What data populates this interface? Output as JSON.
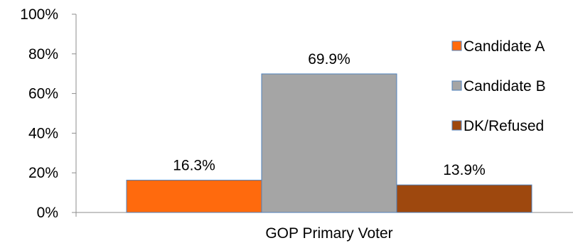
{
  "chart_data": {
    "type": "bar",
    "categories": [
      "GOP Primary Voter"
    ],
    "series": [
      {
        "name": "Candidate A",
        "values": [
          16.3
        ],
        "label": "16.3%",
        "color": "#FF6A0D"
      },
      {
        "name": "Candidate B",
        "values": [
          69.9
        ],
        "label": "69.9%",
        "color": "#A5A5A5"
      },
      {
        "name": "DK/Refused",
        "values": [
          13.9
        ],
        "label": "13.9%",
        "color": "#9E480E"
      }
    ],
    "ylim": [
      0,
      100
    ],
    "yticks": [
      {
        "value": 0,
        "label": "0%"
      },
      {
        "value": 20,
        "label": "20%"
      },
      {
        "value": 40,
        "label": "40%"
      },
      {
        "value": 60,
        "label": "60%"
      },
      {
        "value": 80,
        "label": "80%"
      },
      {
        "value": 100,
        "label": "100%"
      }
    ],
    "grid": false,
    "legend_position": "right",
    "bar_border_color": "#4F81BD"
  }
}
